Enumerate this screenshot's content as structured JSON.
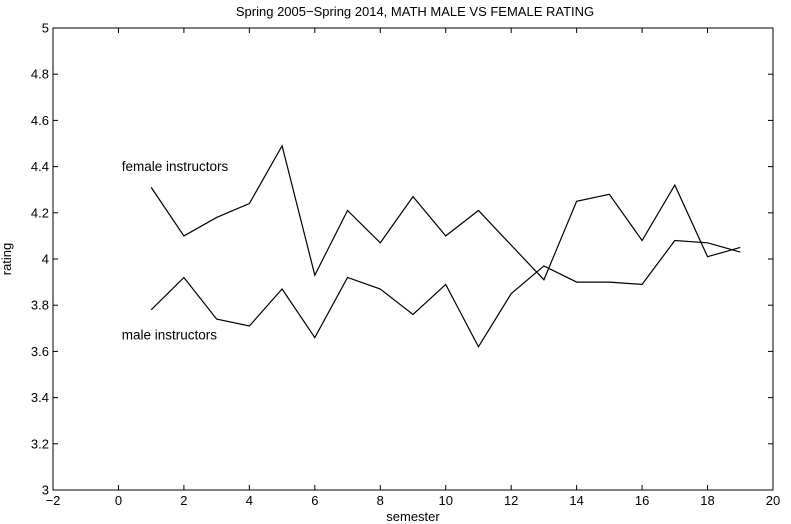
{
  "chart_data": {
    "type": "line",
    "title": "Spring 2005−Spring 2014, MATH MALE VS FEMALE RATING",
    "xlabel": "semester",
    "ylabel": "rating",
    "xlim": [
      -2,
      20
    ],
    "ylim": [
      3,
      5
    ],
    "x_ticks": [
      -2,
      0,
      2,
      4,
      6,
      8,
      10,
      12,
      14,
      16,
      18,
      20
    ],
    "y_ticks": [
      3,
      3.2,
      3.4,
      3.6,
      3.8,
      4,
      4.2,
      4.4,
      4.6,
      4.8,
      5
    ],
    "x_tick_labels": [
      "−2",
      "0",
      "2",
      "4",
      "6",
      "8",
      "10",
      "12",
      "14",
      "16",
      "18",
      "20"
    ],
    "y_tick_labels": [
      "3",
      "3.2",
      "3.4",
      "3.6",
      "3.8",
      "4",
      "4.2",
      "4.4",
      "4.6",
      "4.8",
      "5"
    ],
    "grid": false,
    "legend": "none",
    "x": [
      1,
      2,
      3,
      4,
      5,
      6,
      7,
      8,
      9,
      10,
      11,
      12,
      13,
      14,
      15,
      16,
      17,
      18,
      19
    ],
    "series": [
      {
        "values": [
          4.31,
          4.1,
          4.18,
          4.24,
          4.49,
          3.93,
          4.21,
          4.07,
          4.27,
          4.1,
          4.21,
          4.06,
          3.91,
          4.25,
          4.28,
          4.08,
          4.32,
          4.01,
          4.05
        ]
      },
      {
        "values": [
          3.78,
          3.92,
          3.74,
          3.71,
          3.87,
          3.66,
          3.92,
          3.87,
          3.76,
          3.89,
          3.62,
          3.85,
          3.97,
          3.9,
          3.9,
          3.89,
          4.08,
          4.07,
          4.03
        ]
      }
    ],
    "annotations": [
      {
        "text": "female instructors",
        "series": 0,
        "x": 0.1,
        "y": 4.4
      },
      {
        "text": "male instructors",
        "series": 1,
        "x": 0.1,
        "y": 3.67
      }
    ]
  }
}
